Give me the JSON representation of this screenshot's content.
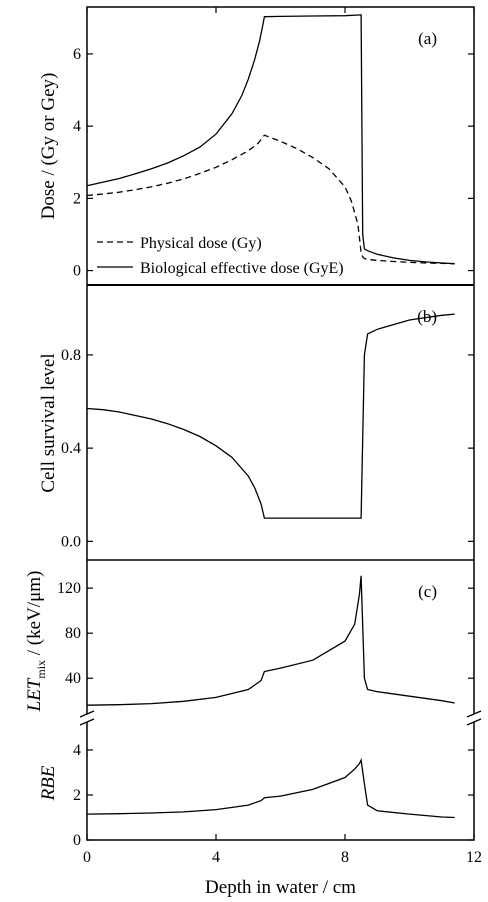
{
  "chart_data": [
    {
      "panel": "(a)",
      "type": "line",
      "xlim": [
        0,
        12
      ],
      "ylim": [
        -0.4,
        7.3
      ],
      "ylabel": "Dose / (Gy or Gey)",
      "yticks": [
        0,
        2,
        4,
        6
      ],
      "legend_position": "bottom-left",
      "series": [
        {
          "name": "Physical dose (Gy)",
          "style": "dashed",
          "x": [
            0,
            0.5,
            1,
            1.5,
            2,
            2.5,
            3,
            3.5,
            4,
            4.5,
            5,
            5.3,
            5.5,
            6,
            6.5,
            7,
            7.5,
            8,
            8.2,
            8.4,
            8.5,
            8.55,
            8.6,
            8.7,
            9,
            9.5,
            10,
            10.5,
            11,
            11.4
          ],
          "y": [
            2.08,
            2.12,
            2.17,
            2.24,
            2.32,
            2.42,
            2.54,
            2.69,
            2.86,
            3.07,
            3.32,
            3.52,
            3.75,
            3.58,
            3.38,
            3.13,
            2.82,
            2.32,
            1.92,
            1.28,
            0.5,
            0.38,
            0.33,
            0.31,
            0.28,
            0.25,
            0.23,
            0.21,
            0.2,
            0.19
          ]
        },
        {
          "name": "Biological effective dose (GyE)",
          "style": "solid",
          "x": [
            0,
            0.5,
            1,
            1.5,
            2,
            2.5,
            3,
            3.5,
            4,
            4.5,
            4.8,
            5,
            5.2,
            5.35,
            5.45,
            5.5,
            6,
            7,
            8,
            8.5,
            8.55,
            8.6,
            8.7,
            9,
            9.5,
            10,
            10.5,
            11,
            11.4
          ],
          "y": [
            2.35,
            2.45,
            2.55,
            2.68,
            2.82,
            2.98,
            3.18,
            3.42,
            3.78,
            4.35,
            4.85,
            5.3,
            5.85,
            6.35,
            6.8,
            7.03,
            7.04,
            7.05,
            7.06,
            7.08,
            1.0,
            0.6,
            0.55,
            0.45,
            0.35,
            0.28,
            0.24,
            0.21,
            0.19
          ]
        }
      ]
    },
    {
      "panel": "(b)",
      "type": "line",
      "xlim": [
        0,
        12
      ],
      "ylim": [
        -0.08,
        1.1
      ],
      "ylabel": "Cell survival level",
      "yticks": [
        "0.0",
        "0.4",
        "0.8"
      ],
      "series": [
        {
          "style": "solid",
          "x": [
            0,
            0.5,
            1,
            1.5,
            2,
            2.5,
            3,
            3.5,
            4,
            4.5,
            5,
            5.2,
            5.4,
            5.5,
            6,
            7,
            8,
            8.5,
            8.6,
            8.7,
            9,
            9.5,
            10,
            10.5,
            11,
            11.4
          ],
          "y": [
            0.57,
            0.565,
            0.555,
            0.54,
            0.525,
            0.505,
            0.48,
            0.45,
            0.41,
            0.36,
            0.28,
            0.23,
            0.16,
            0.1,
            0.1,
            0.1,
            0.1,
            0.1,
            0.8,
            0.89,
            0.91,
            0.93,
            0.95,
            0.96,
            0.97,
            0.975
          ]
        }
      ]
    },
    {
      "panel": "(c)",
      "type": "line",
      "xlim": [
        0,
        12
      ],
      "ylim": [
        10,
        145
      ],
      "ylabel_italic": "LET",
      "ylabel_subscript": "mix",
      "ylabel_rest": "/ (keV/μm)",
      "yticks": [
        40,
        80,
        120
      ],
      "series": [
        {
          "style": "solid",
          "x": [
            0,
            1,
            2,
            3,
            4,
            5,
            5.4,
            5.5,
            6,
            7,
            8,
            8.3,
            8.45,
            8.5,
            8.6,
            8.7,
            9,
            10,
            11,
            11.4
          ],
          "y": [
            16,
            16.5,
            17.5,
            19.5,
            23,
            30,
            38,
            46,
            49,
            56,
            73,
            88,
            115,
            131,
            40,
            30,
            28,
            24,
            20,
            18
          ]
        }
      ]
    },
    {
      "type": "line",
      "xlim": [
        0,
        12
      ],
      "ylim": [
        0,
        5.2
      ],
      "ylabel": "RBE",
      "yticks": [
        0,
        2,
        4
      ],
      "xticks": [
        0,
        4,
        8,
        12
      ],
      "xlabel": "Depth in water / cm",
      "series": [
        {
          "style": "solid",
          "x": [
            0,
            1,
            2,
            3,
            4,
            5,
            5.4,
            5.5,
            6,
            7,
            8,
            8.3,
            8.45,
            8.5,
            8.6,
            8.7,
            9,
            10,
            11,
            11.4
          ],
          "y": [
            1.15,
            1.17,
            1.2,
            1.25,
            1.35,
            1.55,
            1.75,
            1.88,
            1.95,
            2.25,
            2.78,
            3.15,
            3.4,
            3.55,
            2.5,
            1.55,
            1.3,
            1.15,
            1.02,
            1.0
          ]
        }
      ]
    }
  ]
}
